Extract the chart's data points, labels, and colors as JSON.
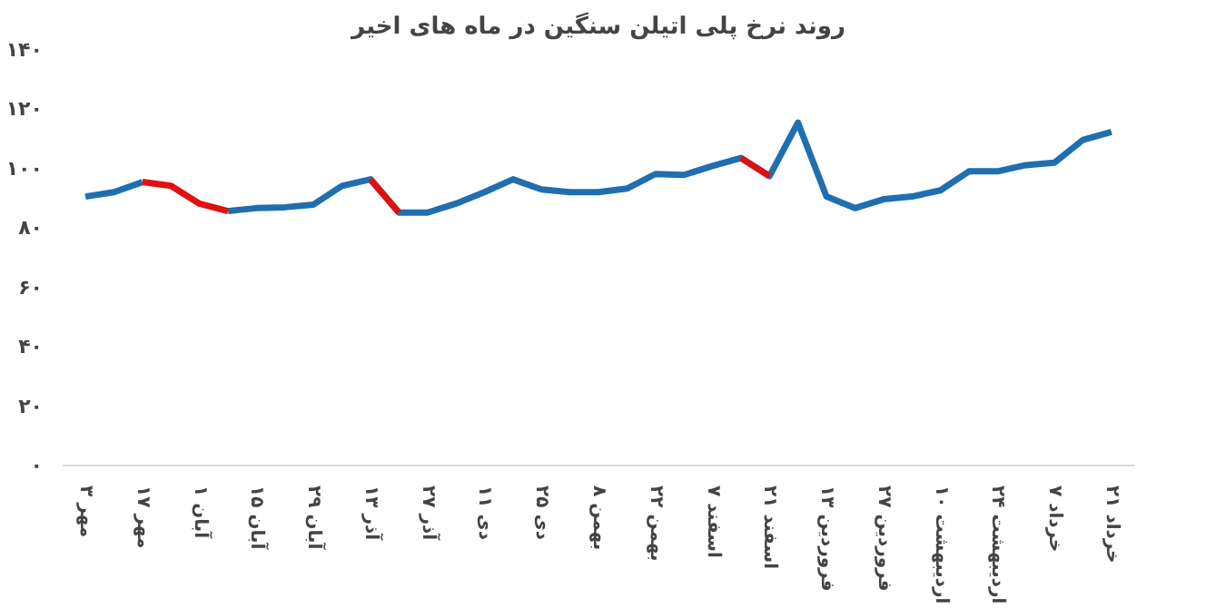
{
  "chart_data": {
    "type": "line",
    "title": "روند نرخ پلی اتیلن سنگین در ماه های اخیر",
    "categories": [
      "۳ مهر",
      null,
      "۱۷ مهر",
      null,
      "۱ آبان",
      null,
      "۱۵ آبان",
      null,
      "۲۹ آبان",
      null,
      "۱۳ آذر",
      null,
      "۲۷ آذر",
      null,
      "۱۱ دی",
      null,
      "۲۵ دی",
      null,
      "۸ بهمن",
      null,
      "۲۲ بهمن",
      null,
      "۷ اسفند",
      null,
      "۲۱ اسفند",
      null,
      "۱۳ فروردین",
      null,
      "۲۷ فروردین",
      null,
      "۱۰ اردیبهشت",
      null,
      "۲۴ اردیبهشت",
      null,
      "۷ خرداد",
      null,
      "۲۱ خرداد"
    ],
    "series": [
      {
        "color": "#1f6fb0",
        "values": [
          90.6,
          92.1,
          95.5,
          null,
          null,
          85.7,
          86.7,
          87,
          87.9,
          94.2,
          96.4,
          85.2,
          85.2,
          88.2,
          92.1,
          96.4,
          93,
          92.1,
          92.1,
          93.3,
          98.2,
          97.9,
          100.9,
          103.6,
          97.5,
          115.5,
          90.6,
          86.7,
          89.7,
          90.6,
          92.7,
          99.1,
          99.1,
          101.2,
          102,
          109.7,
          112.4
        ]
      },
      {
        "color": "#e01010",
        "values": [
          null,
          null,
          95.5,
          94.2,
          88.2,
          85.7,
          null,
          null,
          null,
          null,
          96.4,
          85.2,
          null,
          null,
          null,
          null,
          null,
          null,
          null,
          null,
          null,
          null,
          null,
          103.6,
          97.5,
          null,
          null,
          null,
          null,
          null,
          null,
          null,
          null,
          null,
          null,
          null,
          null
        ]
      }
    ],
    "ylim": [
      0,
      140
    ],
    "yticks": [
      {
        "value": 0,
        "label": "۰"
      },
      {
        "value": 20,
        "label": "۲۰"
      },
      {
        "value": 40,
        "label": "۴۰"
      },
      {
        "value": 60,
        "label": "۶۰"
      },
      {
        "value": 80,
        "label": "۸۰"
      },
      {
        "value": 100,
        "label": "۱۰۰"
      },
      {
        "value": 120,
        "label": "۱۲۰"
      },
      {
        "value": 140,
        "label": "۱۴۰"
      }
    ],
    "marker": "none",
    "line_style": "solid"
  }
}
